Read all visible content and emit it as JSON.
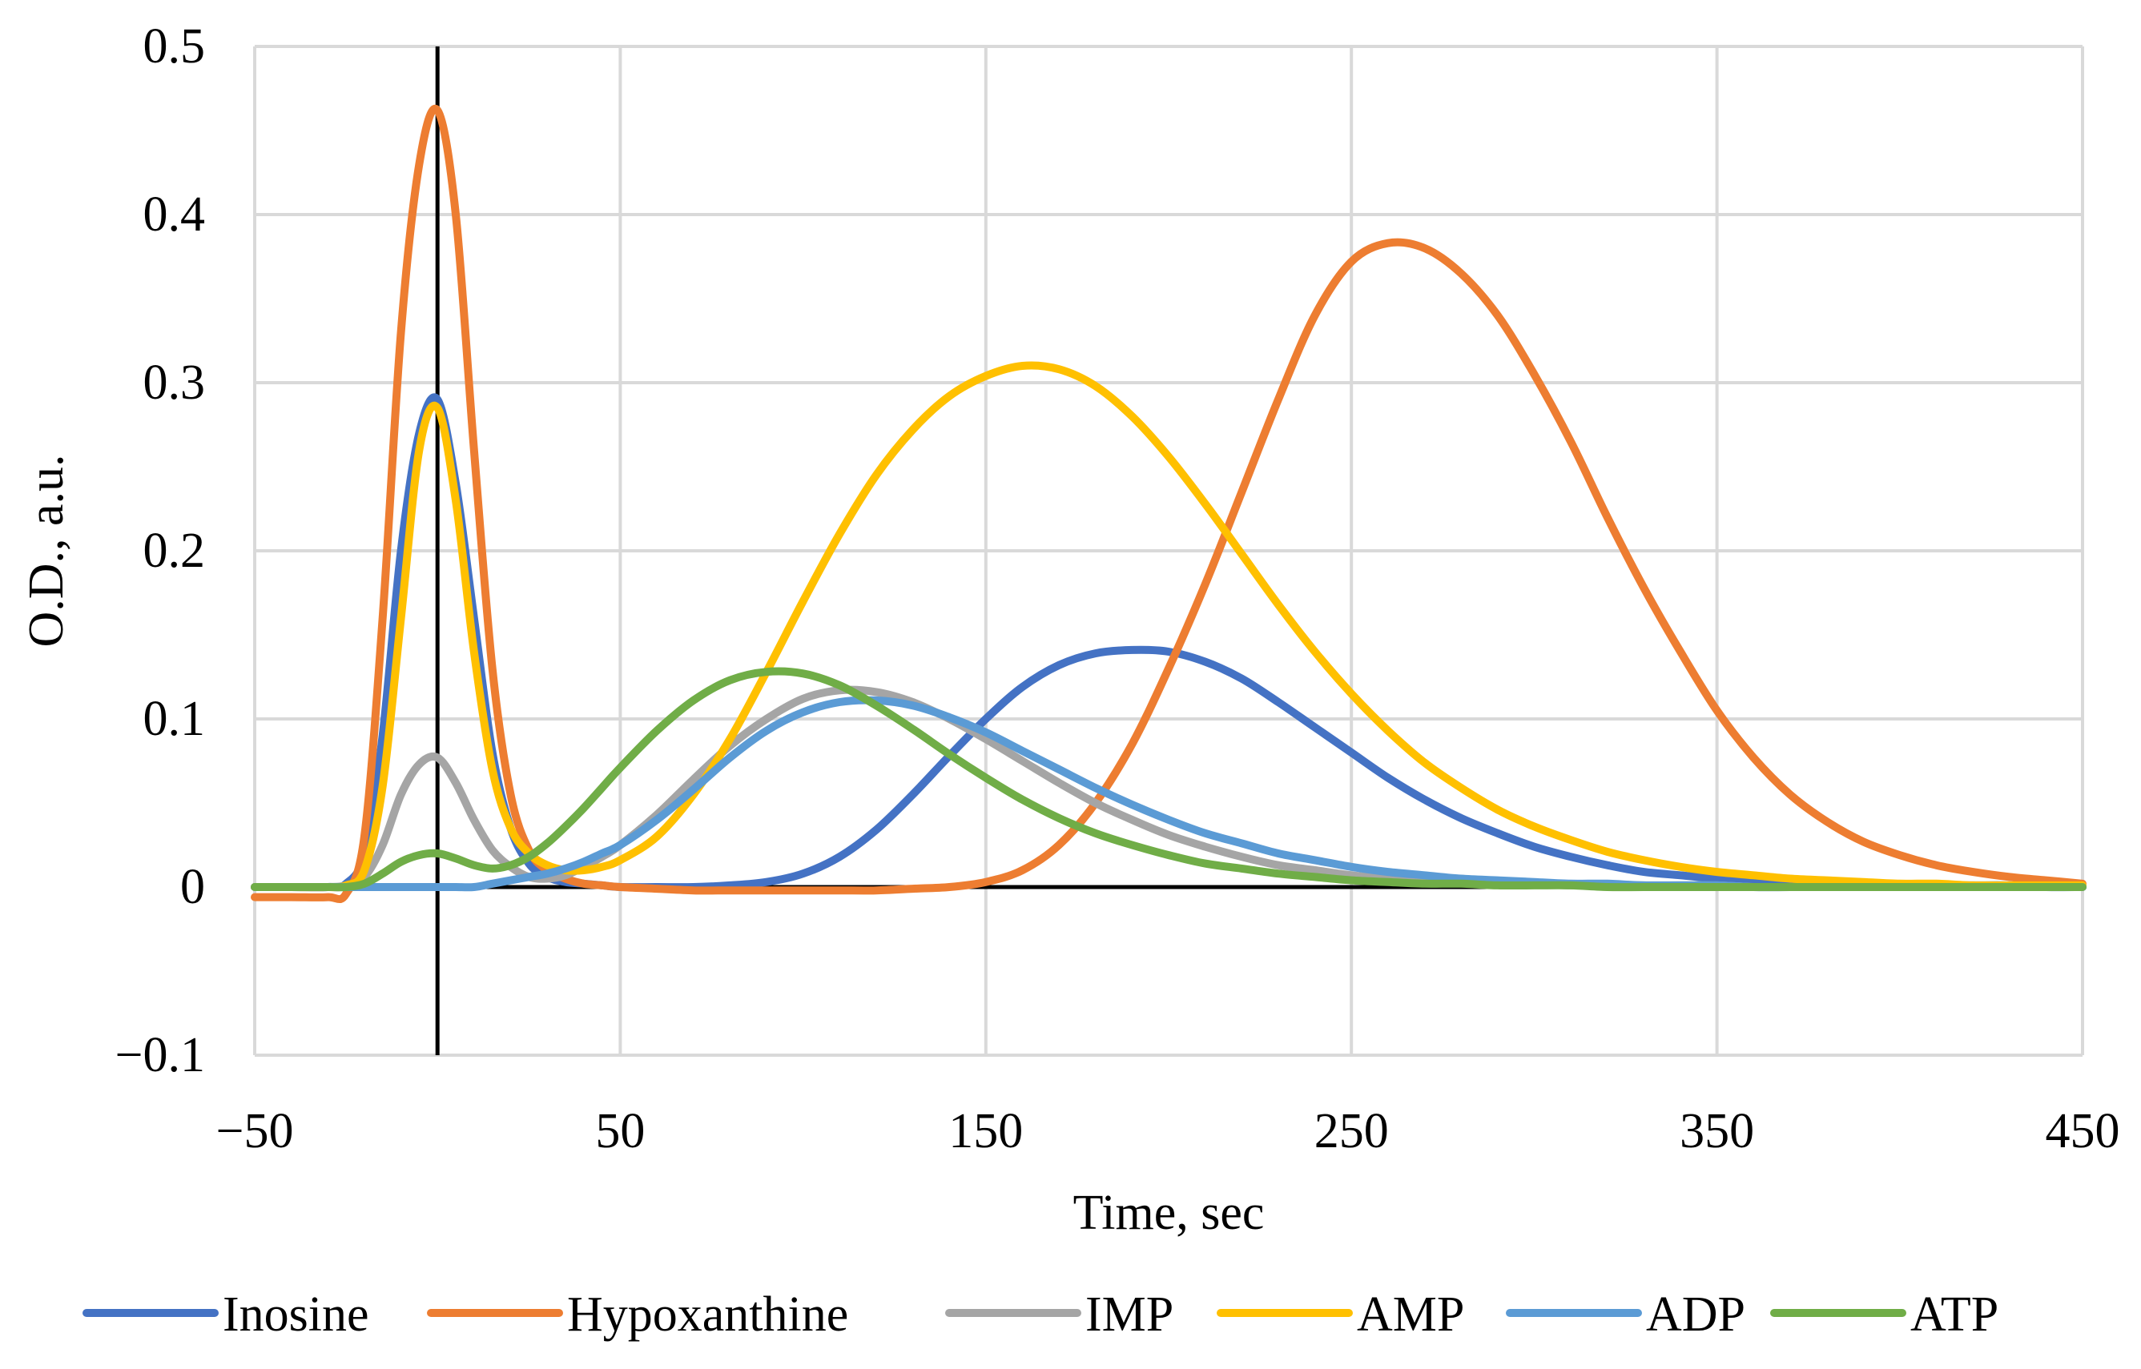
{
  "chart_data": {
    "type": "line",
    "title": "",
    "xlabel": "Time, sec",
    "ylabel": "O.D., a.u.",
    "xlim": [
      -50,
      450
    ],
    "ylim": [
      -0.1,
      0.5
    ],
    "x_ticks": [
      -50,
      50,
      150,
      250,
      350,
      450
    ],
    "x_tick_labels": [
      "−50",
      "50",
      "150",
      "250",
      "350",
      "450"
    ],
    "y_ticks": [
      -0.1,
      0,
      0.1,
      0.2,
      0.3,
      0.4,
      0.5
    ],
    "y_tick_labels": [
      "−0.1",
      "0",
      "0.1",
      "0.2",
      "0.3",
      "0.4",
      "0.5"
    ],
    "grid": true,
    "legend_position": "bottom",
    "x": [
      -50,
      -40,
      -30,
      -25,
      -20,
      -15,
      -10,
      -5,
      0,
      5,
      10,
      15,
      20,
      25,
      30,
      35,
      40,
      45,
      50,
      60,
      70,
      80,
      90,
      100,
      110,
      120,
      130,
      140,
      150,
      160,
      170,
      180,
      190,
      200,
      210,
      220,
      230,
      240,
      250,
      260,
      270,
      280,
      290,
      300,
      310,
      320,
      330,
      340,
      350,
      360,
      370,
      380,
      390,
      400,
      410,
      420,
      430,
      440,
      450
    ],
    "series": [
      {
        "name": "Inosine",
        "color": "#4472c4",
        "values": [
          0,
          0,
          0,
          0.002,
          0.02,
          0.09,
          0.2,
          0.27,
          0.29,
          0.24,
          0.16,
          0.08,
          0.035,
          0.014,
          0.006,
          0.003,
          0.002,
          0.001,
          0,
          0,
          0,
          0.001,
          0.003,
          0.008,
          0.018,
          0.034,
          0.055,
          0.078,
          0.1,
          0.119,
          0.132,
          0.139,
          0.141,
          0.14,
          0.134,
          0.124,
          0.11,
          0.095,
          0.08,
          0.065,
          0.052,
          0.041,
          0.032,
          0.024,
          0.018,
          0.013,
          0.009,
          0.007,
          0.005,
          0.004,
          0.003,
          0.002,
          0.002,
          0.001,
          0.001,
          0.001,
          0.001,
          0,
          0
        ]
      },
      {
        "name": "Hypoxanthine",
        "color": "#ed7d31",
        "values": [
          -0.006,
          -0.006,
          -0.006,
          -0.004,
          0.03,
          0.16,
          0.33,
          0.43,
          0.462,
          0.4,
          0.26,
          0.13,
          0.055,
          0.022,
          0.01,
          0.005,
          0.002,
          0.001,
          0,
          -0.001,
          -0.002,
          -0.002,
          -0.002,
          -0.002,
          -0.002,
          -0.002,
          -0.001,
          0,
          0.003,
          0.01,
          0.025,
          0.05,
          0.085,
          0.13,
          0.18,
          0.235,
          0.29,
          0.34,
          0.372,
          0.383,
          0.38,
          0.365,
          0.34,
          0.305,
          0.265,
          0.22,
          0.178,
          0.14,
          0.105,
          0.077,
          0.055,
          0.039,
          0.027,
          0.019,
          0.013,
          0.009,
          0.006,
          0.004,
          0.002
        ]
      },
      {
        "name": "IMP",
        "color": "#a5a5a5",
        "values": [
          0,
          0,
          0,
          0.001,
          0.006,
          0.025,
          0.055,
          0.073,
          0.077,
          0.062,
          0.04,
          0.022,
          0.012,
          0.006,
          0.005,
          0.007,
          0.012,
          0.018,
          0.025,
          0.043,
          0.064,
          0.084,
          0.1,
          0.112,
          0.117,
          0.116,
          0.11,
          0.1,
          0.088,
          0.075,
          0.062,
          0.05,
          0.04,
          0.031,
          0.024,
          0.018,
          0.013,
          0.01,
          0.007,
          0.005,
          0.004,
          0.003,
          0.002,
          0.002,
          0.001,
          0.001,
          0.001,
          0.001,
          0.001,
          0,
          0,
          0,
          0,
          0,
          0,
          0,
          0,
          0,
          0
        ]
      },
      {
        "name": "AMP",
        "color": "#ffc000",
        "values": [
          0,
          0,
          0,
          0.001,
          0.01,
          0.06,
          0.16,
          0.26,
          0.285,
          0.23,
          0.14,
          0.07,
          0.035,
          0.02,
          0.013,
          0.01,
          0.01,
          0.012,
          0.016,
          0.03,
          0.055,
          0.088,
          0.128,
          0.17,
          0.21,
          0.245,
          0.272,
          0.292,
          0.304,
          0.31,
          0.308,
          0.298,
          0.28,
          0.256,
          0.228,
          0.198,
          0.168,
          0.14,
          0.115,
          0.093,
          0.074,
          0.059,
          0.046,
          0.036,
          0.028,
          0.021,
          0.016,
          0.012,
          0.009,
          0.007,
          0.005,
          0.004,
          0.003,
          0.002,
          0.002,
          0.001,
          0.001,
          0.001,
          0.001
        ]
      },
      {
        "name": "ADP",
        "color": "#5b9bd5",
        "values": [
          0,
          0,
          0,
          0,
          0,
          0,
          0,
          0,
          0,
          0,
          0,
          0.002,
          0.004,
          0.006,
          0.008,
          0.011,
          0.015,
          0.02,
          0.025,
          0.04,
          0.058,
          0.077,
          0.093,
          0.104,
          0.11,
          0.111,
          0.108,
          0.101,
          0.092,
          0.081,
          0.07,
          0.059,
          0.049,
          0.04,
          0.032,
          0.026,
          0.02,
          0.016,
          0.012,
          0.009,
          0.007,
          0.005,
          0.004,
          0.003,
          0.002,
          0.002,
          0.001,
          0.001,
          0.001,
          0,
          0,
          0,
          0,
          0,
          0,
          0,
          0,
          0,
          0
        ]
      },
      {
        "name": "ATP",
        "color": "#70ad47",
        "values": [
          0,
          0,
          0,
          0,
          0.002,
          0.008,
          0.015,
          0.019,
          0.02,
          0.017,
          0.013,
          0.011,
          0.013,
          0.018,
          0.026,
          0.036,
          0.047,
          0.059,
          0.071,
          0.093,
          0.111,
          0.123,
          0.128,
          0.127,
          0.12,
          0.108,
          0.094,
          0.079,
          0.065,
          0.052,
          0.041,
          0.032,
          0.025,
          0.019,
          0.014,
          0.011,
          0.008,
          0.006,
          0.004,
          0.003,
          0.002,
          0.002,
          0.001,
          0.001,
          0.001,
          0,
          0,
          0,
          0,
          0,
          0,
          0,
          0,
          0,
          0,
          0,
          0,
          0,
          0
        ]
      }
    ]
  }
}
